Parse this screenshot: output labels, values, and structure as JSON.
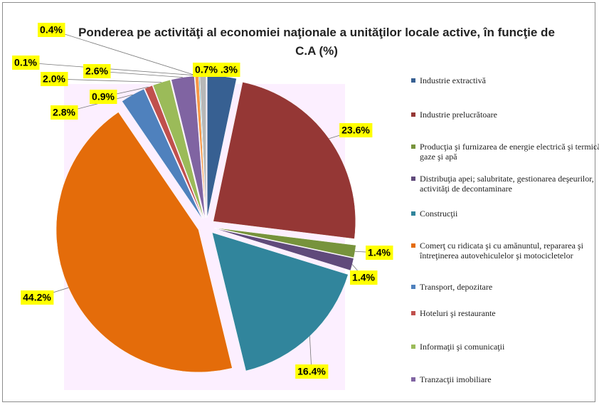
{
  "chart_data": {
    "type": "pie",
    "title": "Ponderea pe activităţi al economiei naţionale a unităţilor locale active, în funcţie de C.A (%)",
    "categories": [
      "Industrie extractivă",
      "Industrie prelucrătoare",
      "Producţia şi furnizarea de energie electrică şi termică, gaze şi apă",
      "Distribuţia apei; salubritate, gestionarea deşeurilor, activităţi de decontaminare",
      "Construcţii",
      "Comerţ cu ridicata şi cu amănuntul, repararea şi întreţinerea autovehiculelor şi motocicletelor",
      "Transport, depozitare",
      "Hoteluri şi restaurante",
      "Informaţii şi comunicaţii",
      "Tranzacţii imobiliare",
      null,
      null,
      null
    ],
    "values": [
      3.3,
      23.6,
      1.4,
      1.4,
      16.4,
      44.2,
      2.8,
      0.9,
      2.0,
      2.6,
      0.4,
      0.1,
      0.7
    ],
    "value_labels": [
      "3.3%",
      "23.6%",
      "1.4%",
      "1.4%",
      "16.4%",
      "44.2%",
      "2.8%",
      "0.9%",
      "2.0%",
      "2.6%",
      "0.4%",
      "0.1%",
      "0.7%"
    ],
    "colors": [
      "#376092",
      "#953735",
      "#77933c",
      "#604a7b",
      "#31859c",
      "#e46c0a",
      "#4f81bd",
      "#c0504d",
      "#9bbb59",
      "#8064a2",
      "#f79646",
      "#4bacc6",
      "#b7b7b7"
    ]
  }
}
